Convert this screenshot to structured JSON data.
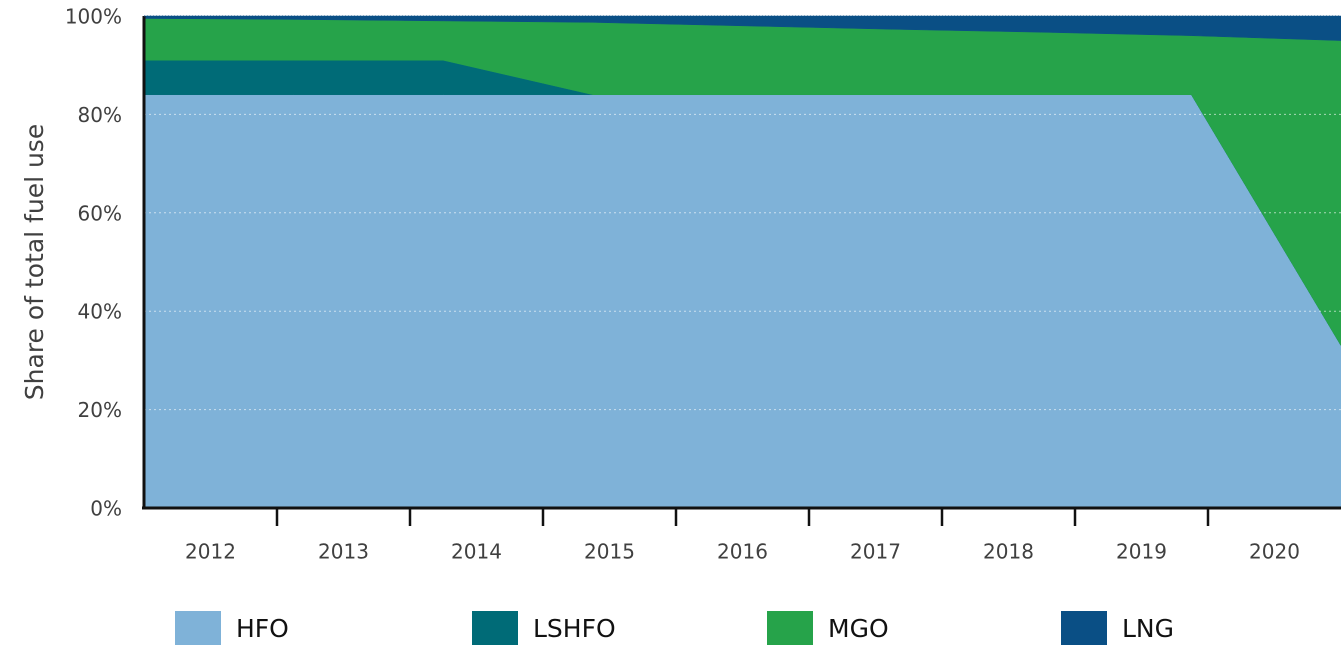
{
  "chart_data": {
    "type": "stacked_area",
    "ylabel": "Share of total fuel use",
    "categories": [
      "2012",
      "2013",
      "2014",
      "2015",
      "2016",
      "2017",
      "2018",
      "2019",
      "2020"
    ],
    "series": [
      {
        "name": "HFO",
        "color": "#7fb2d8",
        "values": [
          84,
          84,
          84,
          84,
          84,
          84,
          84,
          84,
          33
        ]
      },
      {
        "name": "LSHFO",
        "color": "#006b77",
        "values": [
          7,
          7,
          7,
          0,
          0,
          0,
          0,
          0,
          0
        ]
      },
      {
        "name": "MGO",
        "color": "#26a34a",
        "values": [
          8.5,
          8.3,
          8,
          14.7,
          14,
          13.3,
          12.7,
          12,
          62
        ]
      },
      {
        "name": "LNG",
        "color": "#0a4f85",
        "values": [
          0.5,
          0.7,
          1,
          1.3,
          2,
          2.7,
          3.3,
          4,
          5
        ]
      }
    ],
    "ylim": [
      0,
      100
    ],
    "yticks": [
      {
        "value": 0,
        "label": "0%"
      },
      {
        "value": 20,
        "label": "20%"
      },
      {
        "value": 40,
        "label": "40%"
      },
      {
        "value": 60,
        "label": "60%"
      },
      {
        "value": 80,
        "label": "80%"
      },
      {
        "value": 100,
        "label": "100%"
      }
    ],
    "grid": true,
    "legend": "bottom"
  }
}
